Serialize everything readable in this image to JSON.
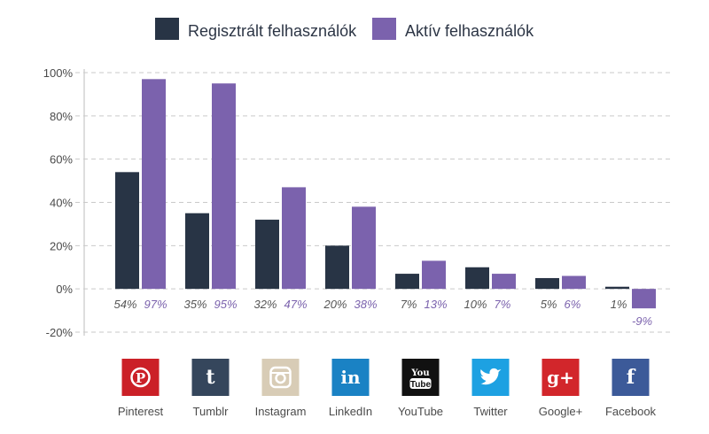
{
  "colors": {
    "registered": "#283445",
    "active": "#7b62ad",
    "active_label": "#7b62ad",
    "registered_label": "#555555"
  },
  "legend": {
    "registered": "Regisztrált felhasználók",
    "active": "Aktív felhasználók"
  },
  "chart_data": {
    "type": "bar",
    "categories": [
      "Pinterest",
      "Tumblr",
      "Instagram",
      "LinkedIn",
      "YouTube",
      "Twitter",
      "Google+",
      "Facebook"
    ],
    "series": [
      {
        "name": "Regisztrált felhasználók",
        "values": [
          54,
          35,
          32,
          20,
          7,
          10,
          5,
          1
        ],
        "labels": [
          "54%",
          "35%",
          "32%",
          "20%",
          "7%",
          "10%",
          "5%",
          "1%"
        ]
      },
      {
        "name": "Aktív felhasználók",
        "values": [
          97,
          95,
          47,
          38,
          13,
          7,
          6,
          -9
        ],
        "labels": [
          "97%",
          "95%",
          "47%",
          "38%",
          "13%",
          "7%",
          "6%",
          "-9%"
        ]
      }
    ],
    "ylim": [
      -20,
      100
    ],
    "yticks": [
      100,
      80,
      60,
      40,
      20,
      0,
      -20
    ],
    "ytick_labels": [
      "100%",
      "80%",
      "60%",
      "40%",
      "20%",
      "0%",
      "-20%"
    ],
    "grid": true,
    "legend_position": "top-center"
  },
  "platforms": [
    {
      "name": "Pinterest",
      "icon": "pinterest-icon",
      "glyph": "P",
      "color": "#cb2027"
    },
    {
      "name": "Tumblr",
      "icon": "tumblr-icon",
      "glyph": "t",
      "color": "#35465c"
    },
    {
      "name": "Instagram",
      "icon": "instagram-icon",
      "glyph": "",
      "color": "#d8ccb6"
    },
    {
      "name": "LinkedIn",
      "icon": "linkedin-icon",
      "glyph": "in",
      "color": "#1a82c4"
    },
    {
      "name": "YouTube",
      "icon": "youtube-icon",
      "glyph": "You Tube",
      "color": "#111111"
    },
    {
      "name": "Twitter",
      "icon": "twitter-icon",
      "glyph": "",
      "color": "#1da1e2"
    },
    {
      "name": "Google+",
      "icon": "google-plus-icon",
      "glyph": "g+",
      "color": "#d2262b"
    },
    {
      "name": "Facebook",
      "icon": "facebook-icon",
      "glyph": "f",
      "color": "#3c5a99"
    }
  ]
}
